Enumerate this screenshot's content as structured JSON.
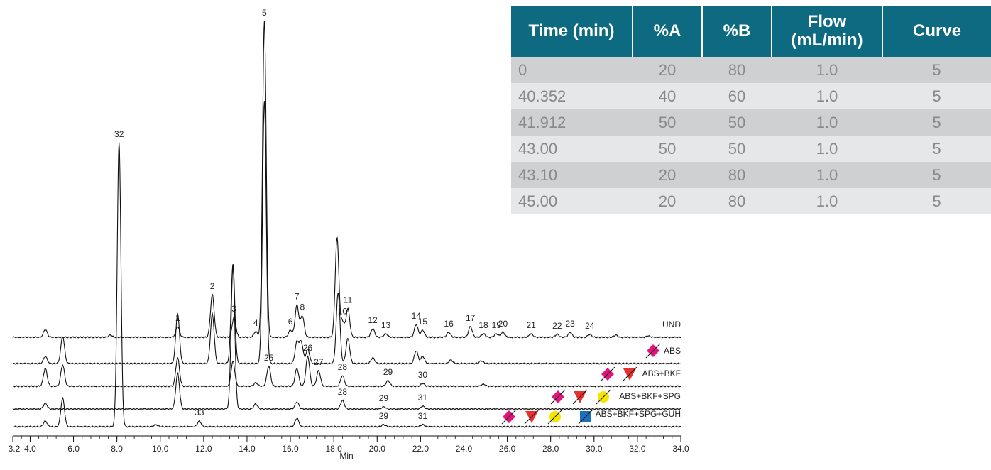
{
  "gradient_table": {
    "headers": [
      "Time (min)",
      "%A",
      "%B",
      "Flow\n(mL/min)",
      "Curve"
    ],
    "rows": [
      [
        "0",
        "20",
        "80",
        "1.0",
        "5"
      ],
      [
        "40.352",
        "40",
        "60",
        "1.0",
        "5"
      ],
      [
        "41.912",
        "50",
        "50",
        "1.0",
        "5"
      ],
      [
        "43.00",
        "50",
        "50",
        "1.0",
        "5"
      ],
      [
        "43.10",
        "20",
        "80",
        "1.0",
        "5"
      ],
      [
        "45.00",
        "20",
        "80",
        "1.0",
        "5"
      ]
    ],
    "colors": {
      "header_bg": "#0e6a80",
      "row_dark": "#cfd0d2",
      "row_light": "#e6e7e8",
      "cell_text": "#888888"
    }
  },
  "chart_data": {
    "type": "line",
    "xlabel": "Min",
    "xlim": [
      3.2,
      34.0
    ],
    "xticks": [
      "3.2",
      "4.0",
      "6.0",
      "8.0",
      "10.0",
      "12.0",
      "14.0",
      "16.0",
      "18.0",
      "20.0",
      "22.0",
      "24.0",
      "26.0",
      "28.0",
      "30.0",
      "32.0",
      "34.0"
    ],
    "xtick_values": [
      3.2,
      4.0,
      6.0,
      8.0,
      10.0,
      12.0,
      14.0,
      16.0,
      18.0,
      20.0,
      22.0,
      24.0,
      26.0,
      28.0,
      30.0,
      32.0,
      34.0
    ],
    "series": [
      {
        "name": "UND",
        "peaks": [
          [
            4.7,
            11
          ],
          [
            7.7,
            3
          ],
          [
            10.8,
            15
          ],
          [
            12.4,
            60
          ],
          [
            13.4,
            28
          ],
          [
            14.4,
            8
          ],
          [
            14.8,
            445
          ],
          [
            16.0,
            10
          ],
          [
            16.3,
            45
          ],
          [
            16.55,
            30
          ],
          [
            18.15,
            140
          ],
          [
            18.4,
            22
          ],
          [
            18.65,
            40
          ],
          [
            19.8,
            12
          ],
          [
            20.4,
            5
          ],
          [
            21.8,
            18
          ],
          [
            22.1,
            10
          ],
          [
            23.3,
            7
          ],
          [
            24.3,
            15
          ],
          [
            24.9,
            5
          ],
          [
            25.5,
            5
          ],
          [
            25.8,
            7
          ],
          [
            27.1,
            5
          ],
          [
            28.3,
            4
          ],
          [
            28.9,
            7
          ],
          [
            29.8,
            4
          ],
          [
            31.0,
            3
          ],
          [
            32.5,
            2
          ]
        ],
        "labels": [
          [
            "1",
            10.8
          ],
          [
            "2",
            12.4
          ],
          [
            "3",
            13.4
          ],
          [
            "4",
            14.4
          ],
          [
            "5",
            14.8
          ],
          [
            "6",
            16.0
          ],
          [
            "7",
            16.3
          ],
          [
            "8",
            16.55
          ],
          [
            "10",
            18.4
          ],
          [
            "11",
            18.65
          ],
          [
            "12",
            19.8
          ],
          [
            "13",
            20.4
          ],
          [
            "14",
            21.8
          ],
          [
            "15",
            22.1
          ],
          [
            "16",
            23.3
          ],
          [
            "17",
            24.3
          ],
          [
            "18",
            24.9
          ],
          [
            "19",
            25.5
          ],
          [
            "20",
            25.8
          ],
          [
            "21",
            27.1
          ],
          [
            "22",
            28.3
          ],
          [
            "23",
            28.9
          ],
          [
            "24",
            29.8
          ]
        ]
      },
      {
        "name": "ABS",
        "peaks": [
          [
            4.7,
            10
          ],
          [
            5.5,
            38
          ],
          [
            10.8,
            70
          ],
          [
            12.4,
            70
          ],
          [
            13.35,
            140
          ],
          [
            14.8,
            370
          ],
          [
            16.3,
            30
          ],
          [
            16.5,
            30
          ],
          [
            16.8,
            20
          ],
          [
            18.2,
            100
          ],
          [
            18.65,
            35
          ],
          [
            19.8,
            8
          ],
          [
            21.8,
            18
          ],
          [
            22.1,
            10
          ],
          [
            23.4,
            5
          ],
          [
            24.8,
            4
          ]
        ],
        "labels": []
      },
      {
        "name": "ABS+BKF",
        "peaks": [
          [
            4.7,
            25
          ],
          [
            5.5,
            30
          ],
          [
            10.8,
            40
          ],
          [
            13.35,
            35
          ],
          [
            14.4,
            5
          ],
          [
            15.0,
            28
          ],
          [
            16.3,
            25
          ],
          [
            16.8,
            42
          ],
          [
            17.3,
            22
          ],
          [
            18.4,
            15
          ],
          [
            20.5,
            8
          ],
          [
            22.1,
            4
          ],
          [
            24.9,
            3
          ]
        ],
        "labels": [
          [
            "25",
            15.0
          ],
          [
            "26",
            16.8
          ],
          [
            "27",
            17.3
          ],
          [
            "28",
            18.4
          ],
          [
            "29",
            20.5
          ],
          [
            "30",
            22.1
          ]
        ]
      },
      {
        "name": "ABS+BKF+SPG",
        "peaks": [
          [
            4.7,
            8
          ],
          [
            10.8,
            50
          ],
          [
            13.35,
            200
          ],
          [
            14.4,
            7
          ],
          [
            16.3,
            10
          ],
          [
            18.4,
            12
          ],
          [
            20.3,
            3
          ],
          [
            22.1,
            4
          ]
        ],
        "labels": [
          [
            "28",
            18.4
          ],
          [
            "29",
            20.3
          ],
          [
            "31",
            22.1
          ]
        ]
      },
      {
        "name": "ABS+BKF+SPG+GUH",
        "peaks": [
          [
            4.7,
            8
          ],
          [
            5.5,
            40
          ],
          [
            8.1,
            400
          ],
          [
            9.8,
            3
          ],
          [
            11.8,
            8
          ],
          [
            16.3,
            12
          ],
          [
            20.3,
            3
          ],
          [
            22.1,
            3
          ]
        ],
        "labels": [
          [
            "33",
            11.8
          ],
          [
            "32",
            8.1
          ],
          [
            "29",
            20.3
          ],
          [
            "31",
            22.1
          ]
        ]
      }
    ],
    "legend_symbols": {
      "ABS": [
        "magenta-diamond"
      ],
      "ABS+BKF": [
        "magenta-diamond",
        "red-triangle"
      ],
      "ABS+BKF+SPG": [
        "magenta-diamond",
        "red-triangle",
        "yellow-circle"
      ],
      "ABS+BKF+SPG+GUH": [
        "magenta-diamond",
        "red-triangle",
        "yellow-circle",
        "blue-square"
      ]
    },
    "symbol_colors": {
      "magenta-diamond": "#e0157d",
      "red-triangle": "#e8302e",
      "yellow-circle": "#f5e600",
      "blue-square": "#1d6fb8"
    }
  }
}
